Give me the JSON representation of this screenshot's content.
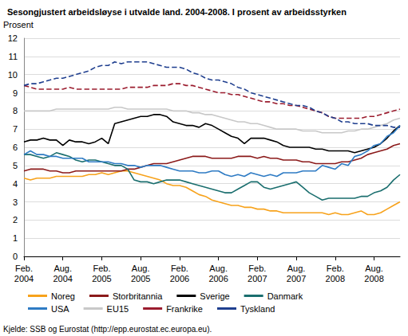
{
  "chart_data": {
    "type": "line",
    "title": "Sesongjustert arbeidsløyse i utvalde land. 2004-2008. I prosent av arbeidsstyrken",
    "y_label": "Prosent",
    "source": "Kjelde: SSB og Eurostat (http://epp.eurostat.ec.europa.eu).",
    "categories": [
      "Feb.\n2004",
      null,
      null,
      null,
      null,
      null,
      "Aug.\n2004",
      null,
      null,
      null,
      null,
      null,
      "Feb.\n2005",
      null,
      null,
      null,
      null,
      null,
      "Aug.\n2005",
      null,
      null,
      null,
      null,
      null,
      "Feb.\n2006",
      null,
      null,
      null,
      null,
      null,
      "Aug.\n2006",
      null,
      null,
      null,
      null,
      null,
      "Feb.\n2007",
      null,
      null,
      null,
      null,
      null,
      "Aug.\n2007",
      null,
      null,
      null,
      null,
      null,
      "Feb.\n2008",
      null,
      null,
      null,
      null,
      null,
      "Aug.\n2008",
      null,
      null,
      null,
      null
    ],
    "series": [
      {
        "name": "Noreg",
        "color": "#f7a21b",
        "line_style": "solid",
        "values": [
          4.3,
          4.2,
          4.3,
          4.3,
          4.3,
          4.4,
          4.4,
          4.4,
          4.4,
          4.4,
          4.5,
          4.5,
          4.6,
          4.5,
          4.6,
          4.7,
          4.7,
          4.6,
          4.5,
          4.4,
          4.3,
          4.2,
          4.0,
          3.9,
          3.9,
          3.8,
          3.6,
          3.4,
          3.3,
          3.1,
          3.0,
          2.9,
          2.8,
          2.8,
          2.7,
          2.7,
          2.6,
          2.6,
          2.5,
          2.5,
          2.4,
          2.4,
          2.4,
          2.4,
          2.4,
          2.4,
          2.4,
          2.3,
          2.4,
          2.3,
          2.3,
          2.4,
          2.5,
          2.3,
          2.3,
          2.4,
          2.6,
          2.8,
          3.0
        ]
      },
      {
        "name": "Storbritannia",
        "color": "#8b1a1a",
        "line_style": "solid",
        "values": [
          4.7,
          4.8,
          4.8,
          4.8,
          4.7,
          4.7,
          4.6,
          4.6,
          4.7,
          4.7,
          4.7,
          4.7,
          4.7,
          4.7,
          4.7,
          4.7,
          4.8,
          4.8,
          4.9,
          5.0,
          5.1,
          5.1,
          5.1,
          5.2,
          5.3,
          5.4,
          5.5,
          5.5,
          5.5,
          5.4,
          5.4,
          5.4,
          5.4,
          5.5,
          5.5,
          5.5,
          5.4,
          5.5,
          5.4,
          5.4,
          5.3,
          5.3,
          5.3,
          5.2,
          5.2,
          5.1,
          5.1,
          5.1,
          5.1,
          5.2,
          5.2,
          5.3,
          5.4,
          5.6,
          5.7,
          5.8,
          5.9,
          6.1,
          6.2
        ]
      },
      {
        "name": "Sverige",
        "color": "#000000",
        "line_style": "solid",
        "values": [
          6.3,
          6.4,
          6.4,
          6.5,
          6.4,
          6.4,
          6.1,
          6.4,
          6.3,
          6.3,
          6.2,
          6.3,
          6.5,
          6.2,
          7.3,
          7.4,
          7.5,
          7.6,
          7.7,
          7.7,
          7.8,
          7.8,
          7.7,
          7.4,
          7.3,
          7.2,
          7.2,
          7.1,
          7.3,
          7.2,
          7.0,
          6.8,
          6.6,
          6.5,
          6.2,
          6.5,
          6.5,
          6.5,
          6.4,
          6.3,
          6.1,
          6.0,
          6.0,
          6.0,
          6.0,
          5.9,
          5.9,
          5.8,
          5.8,
          5.8,
          5.8,
          5.7,
          5.8,
          5.9,
          6.0,
          6.2,
          6.5,
          6.9,
          7.2
        ]
      },
      {
        "name": "Danmark",
        "color": "#1a6e6e",
        "line_style": "solid",
        "values": [
          5.6,
          5.6,
          5.5,
          5.4,
          5.5,
          5.7,
          5.6,
          5.5,
          5.3,
          5.2,
          5.3,
          5.3,
          5.2,
          5.1,
          5.0,
          5.0,
          4.8,
          4.2,
          4.1,
          4.1,
          4.0,
          4.1,
          4.2,
          4.2,
          4.2,
          4.1,
          4.0,
          3.9,
          3.8,
          3.7,
          3.6,
          3.5,
          3.5,
          3.7,
          3.9,
          4.1,
          4.1,
          3.8,
          3.7,
          3.8,
          3.9,
          4.0,
          4.1,
          3.8,
          3.5,
          3.3,
          3.1,
          3.2,
          3.2,
          3.2,
          3.2,
          3.2,
          3.3,
          3.3,
          3.5,
          3.6,
          3.8,
          4.2,
          4.5
        ]
      },
      {
        "name": "USA",
        "color": "#2e7bc4",
        "line_style": "solid",
        "values": [
          5.6,
          5.8,
          5.6,
          5.6,
          5.5,
          5.5,
          5.4,
          5.4,
          5.4,
          5.4,
          5.2,
          5.2,
          5.2,
          5.2,
          5.1,
          5.1,
          5.0,
          5.0,
          4.9,
          5.0,
          5.0,
          5.0,
          4.9,
          4.8,
          4.7,
          4.7,
          4.7,
          4.6,
          4.6,
          4.7,
          4.7,
          4.5,
          4.4,
          4.5,
          4.4,
          4.6,
          4.5,
          4.4,
          4.5,
          4.4,
          4.6,
          4.6,
          4.6,
          4.7,
          4.7,
          4.7,
          5.0,
          4.9,
          4.8,
          5.1,
          5.0,
          5.5,
          5.6,
          5.8,
          6.1,
          6.2,
          6.6,
          6.8,
          7.2
        ]
      },
      {
        "name": "EU15",
        "color": "#c8c8c8",
        "line_style": "solid",
        "values": [
          8.0,
          8.0,
          8.0,
          8.0,
          8.0,
          8.1,
          8.1,
          8.1,
          8.1,
          8.1,
          8.1,
          8.1,
          8.1,
          8.1,
          8.2,
          8.2,
          8.1,
          8.1,
          8.1,
          8.1,
          8.1,
          8.1,
          8.1,
          8.0,
          8.0,
          8.0,
          7.9,
          7.9,
          7.8,
          7.8,
          7.7,
          7.6,
          7.5,
          7.4,
          7.4,
          7.3,
          7.3,
          7.2,
          7.1,
          7.0,
          7.0,
          7.0,
          7.0,
          6.9,
          6.9,
          6.9,
          6.8,
          6.8,
          6.8,
          6.8,
          6.9,
          6.9,
          7.0,
          7.0,
          7.1,
          7.2,
          7.3,
          7.5,
          7.6
        ]
      },
      {
        "name": "Frankrike",
        "color": "#9b1c2e",
        "line_style": "dashed",
        "values": [
          9.4,
          9.3,
          9.2,
          9.2,
          9.2,
          9.2,
          9.2,
          9.3,
          9.2,
          9.2,
          9.2,
          9.2,
          9.2,
          9.2,
          9.2,
          9.2,
          9.3,
          9.3,
          9.3,
          9.3,
          9.4,
          9.4,
          9.4,
          9.5,
          9.5,
          9.4,
          9.4,
          9.3,
          9.2,
          9.1,
          9.0,
          9.0,
          8.9,
          8.9,
          8.8,
          8.7,
          8.6,
          8.5,
          8.5,
          8.4,
          8.4,
          8.3,
          8.3,
          8.2,
          8.1,
          8.0,
          7.9,
          7.7,
          7.6,
          7.6,
          7.6,
          7.6,
          7.6,
          7.7,
          7.7,
          7.8,
          7.9,
          8.0,
          8.1
        ]
      },
      {
        "name": "Tyskland",
        "color": "#1f3f8f",
        "line_style": "dashed",
        "values": [
          9.4,
          9.5,
          9.5,
          9.6,
          9.7,
          9.8,
          9.8,
          9.9,
          10.0,
          10.1,
          10.2,
          10.4,
          10.5,
          10.5,
          10.7,
          10.6,
          10.7,
          10.7,
          10.7,
          10.7,
          10.6,
          10.5,
          10.4,
          10.4,
          10.4,
          10.3,
          10.1,
          10.0,
          9.8,
          9.7,
          9.7,
          9.6,
          9.5,
          9.3,
          9.2,
          9.0,
          8.9,
          8.8,
          8.7,
          8.6,
          8.5,
          8.4,
          8.3,
          8.3,
          8.2,
          8.0,
          7.9,
          7.7,
          7.6,
          7.4,
          7.4,
          7.3,
          7.3,
          7.3,
          7.2,
          7.2,
          7.2,
          7.1,
          7.1
        ]
      }
    ],
    "ylim": [
      0,
      12
    ],
    "yticks": [
      0,
      1,
      2,
      3,
      4,
      5,
      6,
      7,
      8,
      9,
      10,
      11,
      12
    ],
    "grid": true,
    "legend": "bottom"
  }
}
